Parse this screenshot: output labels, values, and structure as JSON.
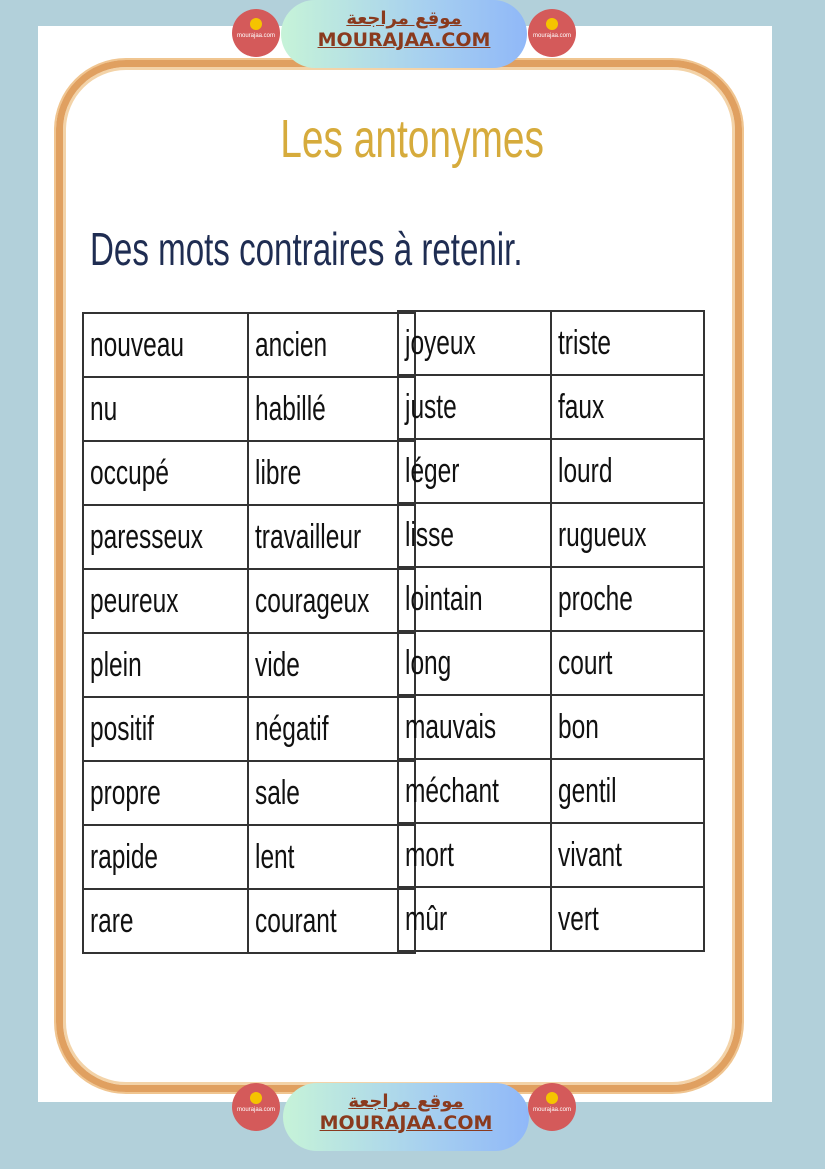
{
  "branding": {
    "arabic": "موقع مراجعة",
    "site": "MOURAJAA.COM",
    "logo_text": "mourajaa.com",
    "logo_color": "#d45a5a"
  },
  "title": "Les antonymes",
  "subtitle": "Des mots contraires à retenir.",
  "left_table": [
    [
      "nouveau",
      "ancien"
    ],
    [
      "nu",
      "habillé"
    ],
    [
      "occupé",
      "libre"
    ],
    [
      "paresseux",
      "travailleur"
    ],
    [
      "peureux",
      "courageux"
    ],
    [
      "plein",
      "vide"
    ],
    [
      "positif",
      "négatif"
    ],
    [
      "propre",
      "sale"
    ],
    [
      "rapide",
      "lent"
    ],
    [
      "rare",
      "courant"
    ]
  ],
  "right_table": [
    [
      "joyeux",
      "triste"
    ],
    [
      "juste",
      "faux"
    ],
    [
      "léger",
      "lourd"
    ],
    [
      "lisse",
      "rugueux"
    ],
    [
      "lointain",
      "proche"
    ],
    [
      "long",
      "court"
    ],
    [
      "mauvais",
      "bon"
    ],
    [
      "méchant",
      "gentil"
    ],
    [
      "mort",
      "vivant"
    ],
    [
      "mûr",
      "vert"
    ]
  ]
}
